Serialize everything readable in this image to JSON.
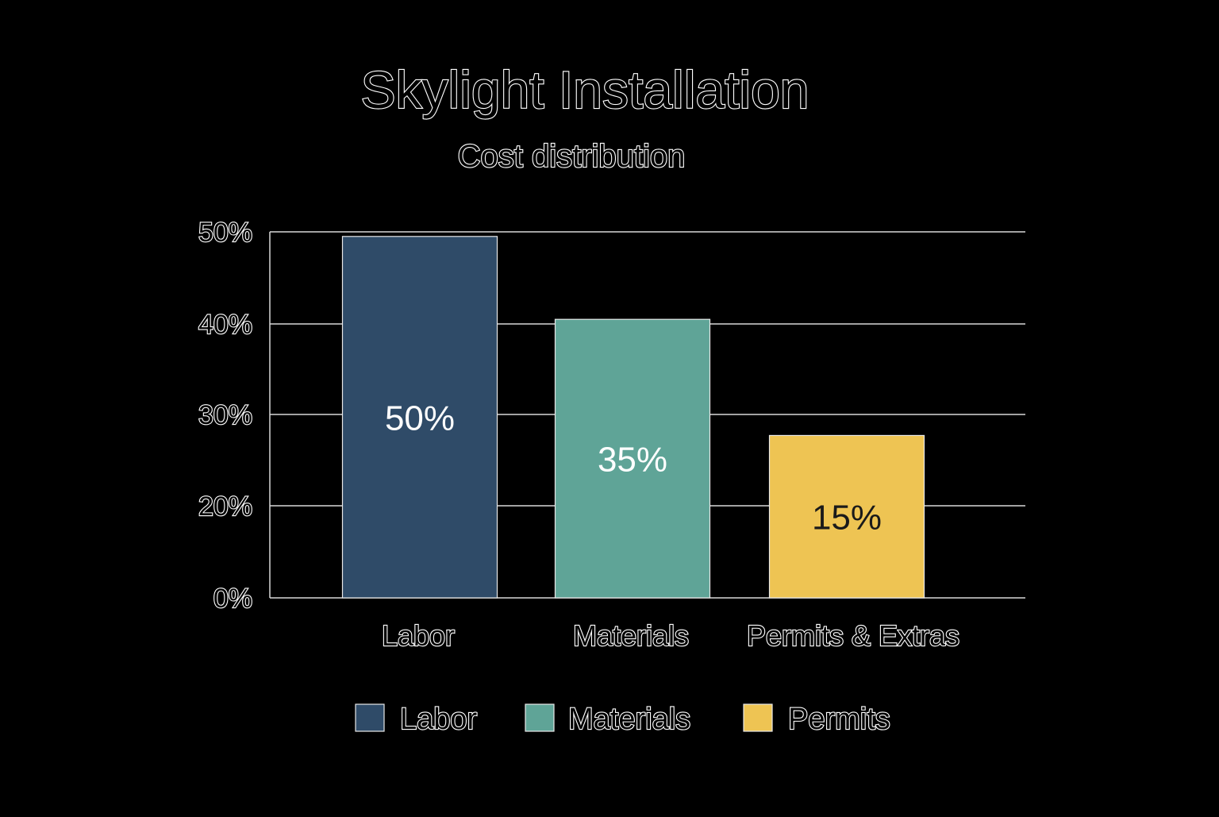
{
  "chart_data": {
    "type": "bar",
    "title": "Skylight Installation",
    "subtitle": "Cost distribution",
    "categories": [
      "Labor",
      "Materials",
      "Permits & Extras"
    ],
    "values": [
      50,
      35,
      15
    ],
    "bar_heights": [
      49.5,
      40.5,
      27.7
    ],
    "data_labels": [
      "50%",
      "35%",
      "15%"
    ],
    "colors": [
      "#2f4b68",
      "#5fa497",
      "#eec453"
    ],
    "data_label_colors": [
      "#ffffff",
      "#ffffff",
      "#1a1a1a"
    ],
    "y_ticks": [
      "0%",
      "20%",
      "30%",
      "40%",
      "50%"
    ],
    "y_tick_values": [
      0,
      20,
      30,
      40,
      50
    ],
    "ylim": [
      0,
      50
    ],
    "grid": true,
    "legend": {
      "placement": "bottom",
      "entries": [
        "Labor",
        "Materials",
        "Permits"
      ]
    }
  }
}
